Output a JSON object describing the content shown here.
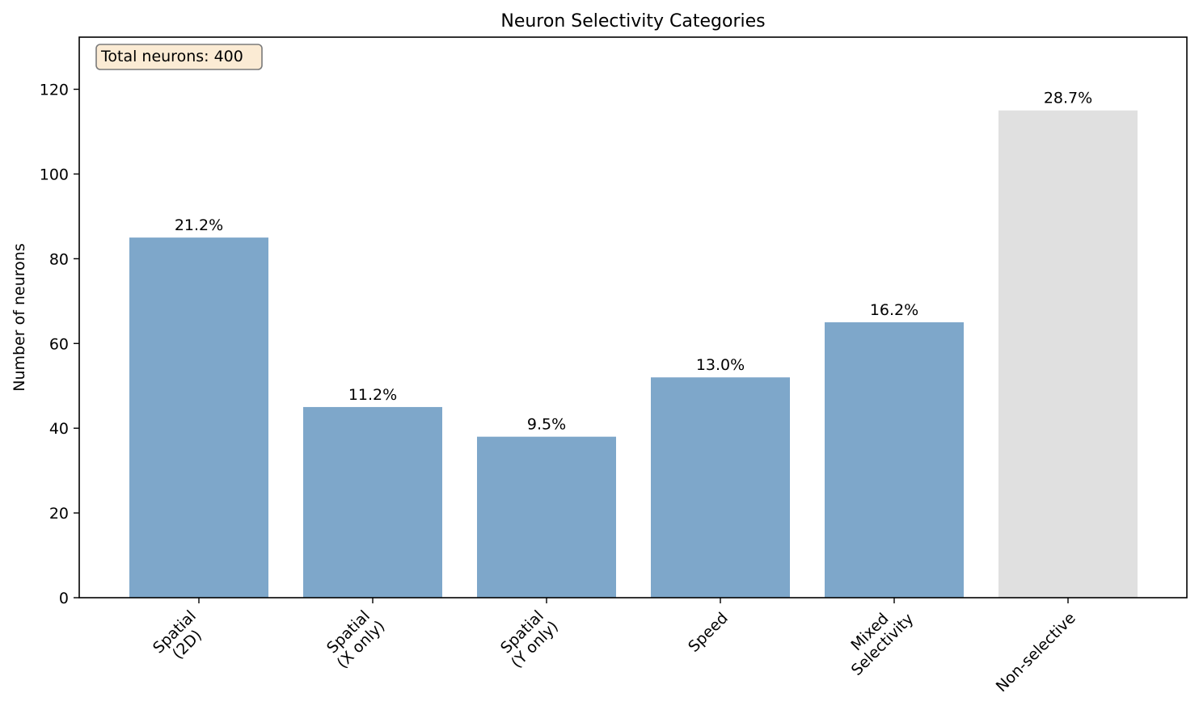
{
  "chart_data": {
    "type": "bar",
    "title": "Neuron Selectivity Categories",
    "xlabel": "",
    "ylabel": "Number of neurons",
    "categories": [
      "Spatial\n(2D)",
      "Spatial\n(X only)",
      "Spatial\n(Y only)",
      "Speed",
      "Mixed\nSelectivity",
      "Non-selective"
    ],
    "values": [
      85,
      45,
      38,
      52,
      65,
      115
    ],
    "bar_labels": [
      "21.2%",
      "11.2%",
      "9.5%",
      "13.0%",
      "16.2%",
      "28.7%"
    ],
    "colors": [
      "#7ea7ca",
      "#7ea7ca",
      "#7ea7ca",
      "#7ea7ca",
      "#7ea7ca",
      "#e0e0e0"
    ],
    "ylim": [
      0,
      132.3
    ],
    "yticks": [
      0,
      20,
      40,
      60,
      80,
      100,
      120
    ],
    "grid": false,
    "annotation": "Total neurons: 400"
  }
}
